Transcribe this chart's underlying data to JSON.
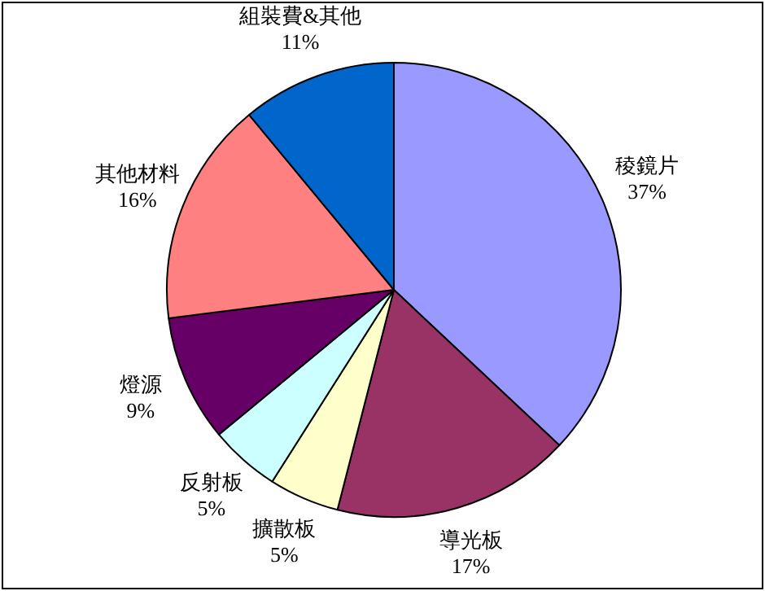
{
  "chart_data": {
    "type": "pie",
    "categories": [
      "稜鏡片",
      "導光板",
      "擴散板",
      "反射板",
      "燈源",
      "其他材料",
      "組裝費&其他"
    ],
    "values": [
      37,
      17,
      5,
      5,
      9,
      16,
      11
    ],
    "colors": [
      "#9999ff",
      "#993366",
      "#ffffcc",
      "#ccffff",
      "#660066",
      "#ff8080",
      "#0066cc"
    ],
    "value_labels": [
      "37%",
      "17%",
      "5%",
      "5%",
      "9%",
      "16%",
      "11%"
    ],
    "legend": false
  }
}
